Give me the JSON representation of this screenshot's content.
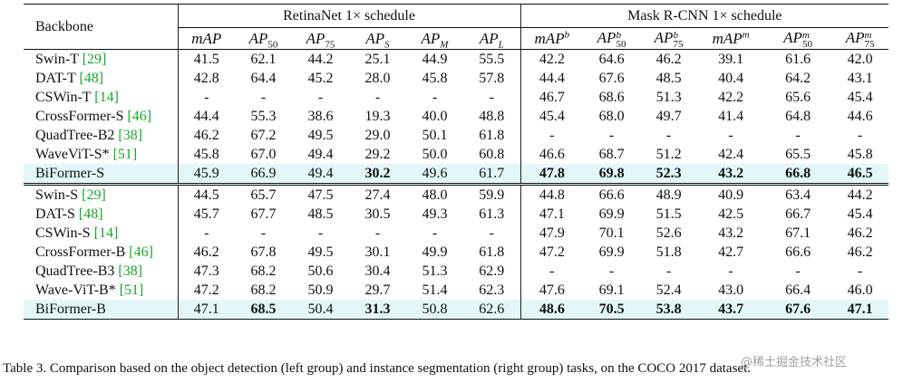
{
  "header": {
    "backbone": "Backbone",
    "retinanet_group": "RetinaNet 1× schedule",
    "maskrcnn_group": "Mask R-CNN 1× schedule",
    "cols": [
      {
        "base": "mAP",
        "sub": "",
        "sup": ""
      },
      {
        "base": "AP",
        "sub": "50",
        "sup": ""
      },
      {
        "base": "AP",
        "sub": "75",
        "sup": ""
      },
      {
        "base": "AP",
        "sub": "S",
        "sup": ""
      },
      {
        "base": "AP",
        "sub": "M",
        "sup": ""
      },
      {
        "base": "AP",
        "sub": "L",
        "sup": ""
      },
      {
        "base": "mAP",
        "sub": "",
        "sup": "b"
      },
      {
        "base": "AP",
        "sub": "50",
        "sup": "b"
      },
      {
        "base": "AP",
        "sub": "75",
        "sup": "b"
      },
      {
        "base": "mAP",
        "sub": "",
        "sup": "m"
      },
      {
        "base": "AP",
        "sub": "50",
        "sup": "m"
      },
      {
        "base": "AP",
        "sub": "75",
        "sup": "m"
      }
    ]
  },
  "groups": [
    {
      "rows": [
        {
          "name": "Swin-T",
          "ref": "[29]",
          "values": [
            "41.5",
            "62.1",
            "44.2",
            "25.1",
            "44.9",
            "55.5",
            "42.2",
            "64.6",
            "46.2",
            "39.1",
            "61.6",
            "42.0"
          ],
          "bold": []
        },
        {
          "name": "DAT-T",
          "ref": "[48]",
          "values": [
            "42.8",
            "64.4",
            "45.2",
            "28.0",
            "45.8",
            "57.8",
            "44.4",
            "67.6",
            "48.5",
            "40.4",
            "64.2",
            "43.1"
          ],
          "bold": []
        },
        {
          "name": "CSWin-T",
          "ref": "[14]",
          "values": [
            "-",
            "-",
            "-",
            "-",
            "-",
            "-",
            "46.7",
            "68.6",
            "51.3",
            "42.2",
            "65.6",
            "45.4"
          ],
          "bold": []
        },
        {
          "name": "CrossFormer-S",
          "ref": "[46]",
          "values": [
            "44.4",
            "55.3",
            "38.6",
            "19.3",
            "40.0",
            "48.8",
            "45.4",
            "68.0",
            "49.7",
            "41.4",
            "64.8",
            "44.6"
          ],
          "bold": []
        },
        {
          "name": "QuadTree-B2",
          "ref": "[38]",
          "values": [
            "46.2",
            "67.2",
            "49.5",
            "29.0",
            "50.1",
            "61.8",
            "-",
            "-",
            "-",
            "-",
            "-",
            "-"
          ],
          "bold": []
        },
        {
          "name": "WaveViT-S*",
          "ref": "[51]",
          "values": [
            "45.8",
            "67.0",
            "49.4",
            "29.2",
            "50.0",
            "60.8",
            "46.6",
            "68.7",
            "51.2",
            "42.4",
            "65.5",
            "45.8"
          ],
          "bold": []
        },
        {
          "name": "BiFormer-S",
          "ref": "",
          "values": [
            "45.9",
            "66.9",
            "49.4",
            "30.2",
            "49.6",
            "61.7",
            "47.8",
            "69.8",
            "52.3",
            "43.2",
            "66.8",
            "46.5"
          ],
          "bold": [
            3,
            6,
            7,
            8,
            9,
            10,
            11
          ],
          "highlight": true
        }
      ]
    },
    {
      "rows": [
        {
          "name": "Swin-S",
          "ref": "[29]",
          "values": [
            "44.5",
            "65.7",
            "47.5",
            "27.4",
            "48.0",
            "59.9",
            "44.8",
            "66.6",
            "48.9",
            "40.9",
            "63.4",
            "44.2"
          ],
          "bold": []
        },
        {
          "name": "DAT-S",
          "ref": "[48]",
          "values": [
            "45.7",
            "67.7",
            "48.5",
            "30.5",
            "49.3",
            "61.3",
            "47.1",
            "69.9",
            "51.5",
            "42.5",
            "66.7",
            "45.4"
          ],
          "bold": []
        },
        {
          "name": "CSWin-S",
          "ref": "[14]",
          "values": [
            "-",
            "-",
            "-",
            "-",
            "-",
            "-",
            "47.9",
            "70.1",
            "52.6",
            "43.2",
            "67.1",
            "46.2"
          ],
          "bold": []
        },
        {
          "name": "CrossFormer-B",
          "ref": "[46]",
          "values": [
            "46.2",
            "67.8",
            "49.5",
            "30.1",
            "49.9",
            "61.8",
            "47.2",
            "69.9",
            "51.8",
            "42.7",
            "66.6",
            "46.2"
          ],
          "bold": []
        },
        {
          "name": "QuadTree-B3",
          "ref": "[38]",
          "values": [
            "47.3",
            "68.2",
            "50.6",
            "30.4",
            "51.3",
            "62.9",
            "-",
            "-",
            "-",
            "-",
            "-",
            "-"
          ],
          "bold": []
        },
        {
          "name": "Wave-ViT-B*",
          "ref": "[51]",
          "values": [
            "47.2",
            "68.2",
            "50.9",
            "29.7",
            "51.4",
            "62.3",
            "47.6",
            "69.1",
            "52.4",
            "43.0",
            "66.4",
            "46.0"
          ],
          "bold": []
        },
        {
          "name": "BiFormer-B",
          "ref": "",
          "values": [
            "47.1",
            "68.5",
            "50.4",
            "31.3",
            "50.8",
            "62.6",
            "48.6",
            "70.5",
            "53.8",
            "43.7",
            "67.6",
            "47.1"
          ],
          "bold": [
            1,
            3,
            6,
            7,
            8,
            9,
            10,
            11
          ],
          "highlight": true
        }
      ]
    }
  ],
  "caption": "Table 3. Comparison based on the object detection (left group) and instance segmentation (right group) tasks, on the COCO 2017 dataset.",
  "watermark": "@稀土掘金技术社区",
  "colors": {
    "highlight_row": "#e3f7f9",
    "ref_link": "#17a82c"
  }
}
